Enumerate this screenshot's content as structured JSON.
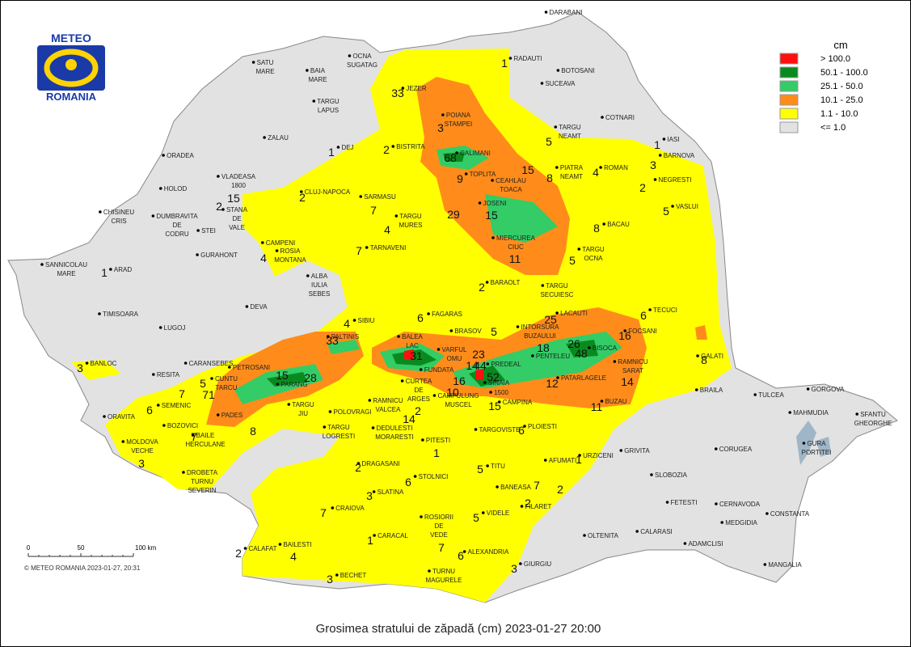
{
  "logo": {
    "top": "METEO",
    "bottom": "ROMANIA"
  },
  "legend": {
    "unit": "cm",
    "items": [
      {
        "label": "> 100.0",
        "color": "#ff1010"
      },
      {
        "label": "50.1 - 100.0",
        "color": "#0a8a1e"
      },
      {
        "label": "25.1 - 50.0",
        "color": "#33cc66"
      },
      {
        "label": "10.1 - 25.0",
        "color": "#ff8c1a"
      },
      {
        "label": "1.1 - 10.0",
        "color": "#ffff00"
      },
      {
        "label": "<= 1.0",
        "color": "#e2e2e2"
      }
    ]
  },
  "scale": {
    "ticks": [
      0,
      50,
      {
        "value": 100,
        "label": "100 km"
      }
    ]
  },
  "copyright": "© METEO ROMANIA 2023-01-27, 20:31",
  "title": "Grosimea stratului de zăpadă (cm)  2023-01-27 20:00",
  "places": [
    [
      "DARABANI"
    ],
    [
      "RADAUTI"
    ],
    [
      "BOTOSANI"
    ],
    [
      "SUCEAVA"
    ],
    [
      "SATU",
      "MARE"
    ],
    [
      "BAIA",
      "MARE"
    ],
    [
      "OCNA",
      "SUGATAG"
    ],
    [
      "TARGU",
      "LAPUS"
    ],
    [
      "JEZER"
    ],
    [
      "POIANA",
      "STAMPEI"
    ],
    [
      "COTNARI"
    ],
    [
      "TARGU",
      "NEAMT"
    ],
    [
      "IASI"
    ],
    [
      "BARNOVA"
    ],
    [
      "ZALAU"
    ],
    [
      "DEJ"
    ],
    [
      "BISTRITA"
    ],
    [
      "CALIMANI"
    ],
    [
      "PIATRA",
      "NEAMT"
    ],
    [
      "ROMAN"
    ],
    [
      "NEGRESTI"
    ],
    [
      "ORADEA"
    ],
    [
      "VLADEASA",
      "1800"
    ],
    [
      "HOLOD"
    ],
    [
      "CLUJ-NAPOCA"
    ],
    [
      "TOPLITA"
    ],
    [
      "CEAHLAU",
      "TOACA"
    ],
    [
      "SARMASU"
    ],
    [
      "CHISINEU",
      "CRIS"
    ],
    [
      "DUMBRAVITA",
      "DE",
      "CODRU"
    ],
    [
      "STANA",
      "DE",
      "VALE"
    ],
    [
      "STEI"
    ],
    [
      "JOSENI"
    ],
    [
      "VASLUI"
    ],
    [
      "TARGU",
      "MURES"
    ],
    [
      "BACAU"
    ],
    [
      "CAMPENI"
    ],
    [
      "ROSIA",
      "MONTANA"
    ],
    [
      "GURAHONT"
    ],
    [
      "MIERCUREA",
      "CIUC"
    ],
    [
      "SANNICOLAU",
      "MARE"
    ],
    [
      "ARAD"
    ],
    [
      "TARNAVENI"
    ],
    [
      "TARGU",
      "OCNA"
    ],
    [
      "ALBA",
      "IULIA",
      "SEBES"
    ],
    [
      "BARAOLT"
    ],
    [
      "TARGU",
      "SECUIESC"
    ],
    [
      "DEVA"
    ],
    [
      "TIMISOARA"
    ],
    [
      "SIBIU"
    ],
    [
      "FAGARAS"
    ],
    [
      "LACAUTI"
    ],
    [
      "TECUCI"
    ],
    [
      "LUGOJ"
    ],
    [
      "PALTINIS"
    ],
    [
      "BALEA",
      "LAC"
    ],
    [
      "BRASOV"
    ],
    [
      "INTORSURA",
      "BUZAULUI"
    ],
    [
      "FOCSANI"
    ],
    [
      "VARFUL",
      "OMU"
    ],
    [
      "BISOCA"
    ],
    [
      "PENTELEU"
    ],
    [
      "CARANSEBES"
    ],
    [
      "BANLOC"
    ],
    [
      "PETROSANI"
    ],
    [
      "CUNTU",
      "TARCU"
    ],
    [
      "PARANG"
    ],
    [
      "FUNDATA"
    ],
    [
      "PREDEAL"
    ],
    [
      "SINAIA"
    ],
    [
      "CURTEA",
      "DE",
      "ARGES"
    ],
    [
      "RESITA"
    ],
    [
      "RAMNICU",
      "SARAT"
    ],
    [
      "GALATI"
    ],
    [
      "PATARLAGELE"
    ],
    [
      "BRAILA"
    ],
    [
      "CAMPULUNG",
      "MUSCEL"
    ],
    [
      "1500"
    ],
    [
      "CAMPINA"
    ],
    [
      "TULCEA"
    ],
    [
      "GORGOVA"
    ],
    [
      "SFANTU",
      "GHEORGHE"
    ],
    [
      "MAHMUDIA"
    ],
    [
      "SEMENIC"
    ],
    [
      "TARGU",
      "JIU"
    ],
    [
      "POLOVRAGI"
    ],
    [
      "RAMNICU",
      "VALCEA"
    ],
    [
      "ORAVITA"
    ],
    [
      "PADES"
    ],
    [
      "BUZAU"
    ],
    [
      "BOZOVICI"
    ],
    [
      "BAILE",
      "HERCULANE"
    ],
    [
      "TARGU",
      "LOGRESTI"
    ],
    [
      "DEDULESTI",
      "MORARESTI"
    ],
    [
      "PLOIESTI"
    ],
    [
      "TARGOVISTE"
    ],
    [
      "PITESTI"
    ],
    [
      "MOLDOVA",
      "VECHE"
    ],
    [
      "GRIVITA"
    ],
    [
      "CORUGEA"
    ],
    [
      "GURA",
      "PORTITEI"
    ],
    [
      "URZICENI"
    ],
    [
      "DROBETA",
      "TURNU",
      "SEVERIN"
    ],
    [
      "DRAGASANI"
    ],
    [
      "TITU"
    ],
    [
      "AFUMATI"
    ],
    [
      "SLOBOZIA"
    ],
    [
      "STOLNICI"
    ],
    [
      "BANEASA"
    ],
    [
      "SLATINA"
    ],
    [
      "FILARET"
    ],
    [
      "FETESTI"
    ],
    [
      "CERNAVODA"
    ],
    [
      "CRAIOVA"
    ],
    [
      "VIDELE"
    ],
    [
      "ROSIORII",
      "DE",
      "VEDE"
    ],
    [
      "MEDGIDIA"
    ],
    [
      "CONSTANTA"
    ],
    [
      "CALARASI"
    ],
    [
      "OLTENITA"
    ],
    [
      "CARACAL"
    ],
    [
      "ADAMCLISI"
    ],
    [
      "CALAFAT"
    ],
    [
      "BAILESTI"
    ],
    [
      "ALEXANDRIA"
    ],
    [
      "GIURGIU"
    ],
    [
      "MANGALIA"
    ],
    [
      "BECHET"
    ],
    [
      "TURNU",
      "MAGURELE"
    ]
  ],
  "snow_values": [
    33,
    1,
    3,
    68,
    1,
    2,
    5,
    1,
    3,
    15,
    8,
    4,
    2,
    9,
    15,
    2,
    2,
    7,
    5,
    29,
    15,
    4,
    8,
    4,
    7,
    1,
    5,
    11,
    2,
    6,
    25,
    6,
    4,
    5,
    33,
    16,
    18,
    26,
    31,
    23,
    48,
    8,
    3,
    15,
    28,
    14,
    44,
    16,
    52,
    12,
    14,
    5,
    71,
    7,
    10,
    15,
    11,
    6,
    2,
    8,
    14,
    7,
    6,
    1,
    3,
    1,
    2,
    5,
    6,
    7,
    2,
    3,
    2,
    7,
    5,
    1,
    7,
    2,
    4,
    6,
    3,
    3
  ]
}
